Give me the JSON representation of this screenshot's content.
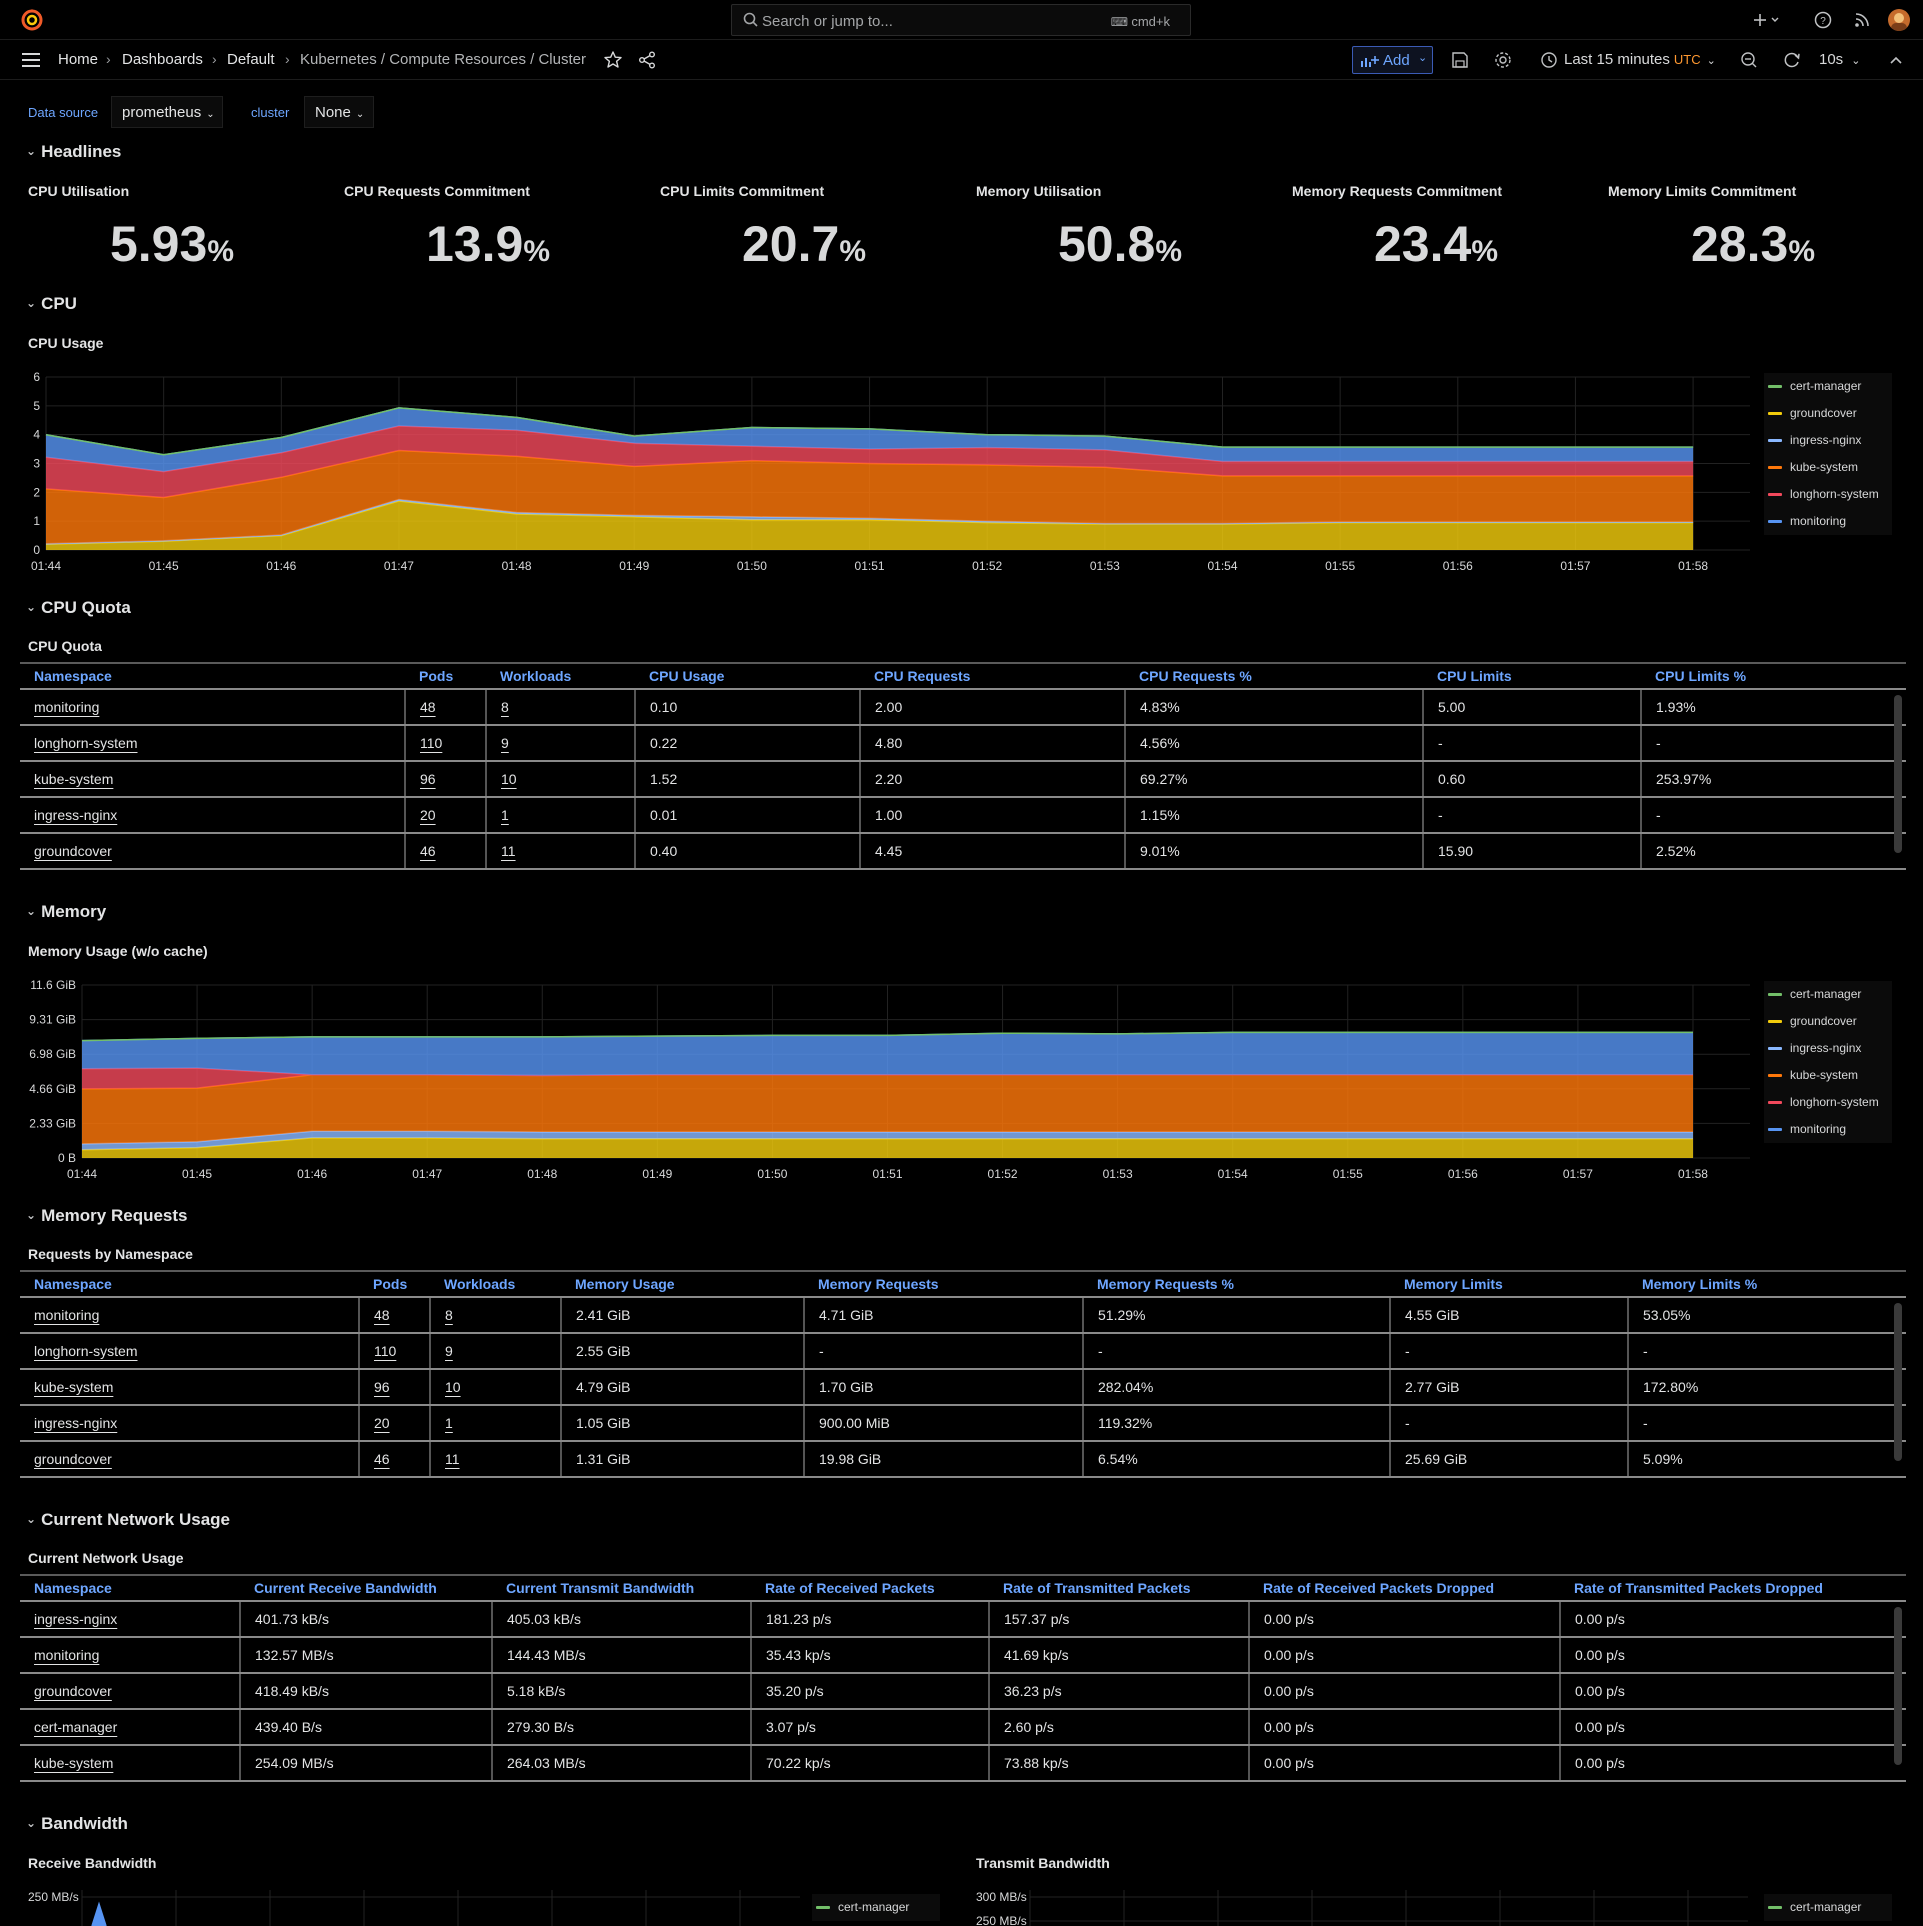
{
  "topbar": {
    "search_placeholder": "Search or jump to...",
    "search_shortcut": "cmd+k",
    "icons": [
      "grafana-logo-icon",
      "plus-icon",
      "help-icon",
      "news-icon",
      "avatar"
    ]
  },
  "navbar": {
    "breadcrumbs": [
      "Home",
      "Dashboards",
      "Default",
      "Kubernetes / Compute Resources / Cluster"
    ],
    "add_label": "Add",
    "time_range": "Last 15 minutes",
    "timezone": "UTC",
    "refresh_interval": "10s"
  },
  "variables": {
    "datasource_label": "Data source",
    "datasource_value": "prometheus",
    "cluster_label": "cluster",
    "cluster_value": "None"
  },
  "rows": {
    "headlines": "Headlines",
    "cpu": "CPU",
    "cpu_quota": "CPU Quota",
    "memory": "Memory",
    "memory_requests": "Memory Requests",
    "network": "Current Network Usage",
    "bandwidth": "Bandwidth"
  },
  "stats": [
    {
      "title": "CPU Utilisation",
      "value": "5.93",
      "unit": "%"
    },
    {
      "title": "CPU Requests Commitment",
      "value": "13.9",
      "unit": "%"
    },
    {
      "title": "CPU Limits Commitment",
      "value": "20.7",
      "unit": "%"
    },
    {
      "title": "Memory Utilisation",
      "value": "50.8",
      "unit": "%"
    },
    {
      "title": "Memory Requests Commitment",
      "value": "23.4",
      "unit": "%"
    },
    {
      "title": "Memory Limits Commitment",
      "value": "28.3",
      "unit": "%"
    }
  ],
  "colors": {
    "cert-manager": "#73bf69",
    "groundcover": "#f2cc0c",
    "ingress-nginx": "#8ab8ff",
    "kube-system": "#ff780a",
    "longhorn-system": "#f2495c",
    "monitoring": "#5794f2",
    "accent": "#6ea6ff",
    "time_accent": "#ff9830"
  },
  "legend": [
    "cert-manager",
    "groundcover",
    "ingress-nginx",
    "kube-system",
    "longhorn-system",
    "monitoring"
  ],
  "cpu_panel": {
    "title": "CPU Usage"
  },
  "memory_panel": {
    "title": "Memory Usage (w/o cache)"
  },
  "chart_data": [
    {
      "type": "area",
      "title": "CPU Usage",
      "stacked": true,
      "x": [
        "01:44",
        "01:45",
        "01:46",
        "01:47",
        "01:48",
        "01:49",
        "01:50",
        "01:51",
        "01:52",
        "01:53",
        "01:54",
        "01:55",
        "01:56",
        "01:57",
        "01:58"
      ],
      "yticks": [
        "0",
        "1",
        "2",
        "3",
        "4",
        "5",
        "6"
      ],
      "ylim": [
        0,
        6
      ],
      "series": [
        {
          "name": "groundcover",
          "values": [
            0.2,
            0.3,
            0.5,
            1.7,
            1.25,
            1.15,
            1.05,
            1.05,
            0.95,
            0.9,
            0.9,
            0.95,
            0.95,
            0.95,
            0.95
          ]
        },
        {
          "name": "ingress-nginx",
          "values": [
            0.02,
            0.02,
            0.02,
            0.05,
            0.05,
            0.05,
            0.1,
            0.05,
            0.05,
            0.02,
            0.02,
            0.02,
            0.02,
            0.02,
            0.02
          ]
        },
        {
          "name": "kube-system",
          "values": [
            1.9,
            1.5,
            2.0,
            1.7,
            1.95,
            1.7,
            1.95,
            1.9,
            1.95,
            1.95,
            1.65,
            1.6,
            1.6,
            1.6,
            1.6
          ]
        },
        {
          "name": "longhorn-system",
          "values": [
            1.1,
            0.9,
            0.85,
            0.85,
            0.9,
            0.8,
            0.5,
            0.5,
            0.6,
            0.6,
            0.5,
            0.5,
            0.5,
            0.5,
            0.5
          ]
        },
        {
          "name": "monitoring",
          "values": [
            0.78,
            0.58,
            0.53,
            0.63,
            0.45,
            0.25,
            0.65,
            0.7,
            0.45,
            0.48,
            0.5,
            0.5,
            0.5,
            0.5,
            0.5
          ]
        },
        {
          "name": "cert-manager",
          "values": [
            0,
            0,
            0,
            0,
            0,
            0,
            0,
            0,
            0,
            0,
            0,
            0,
            0,
            0,
            0
          ]
        }
      ]
    },
    {
      "type": "area",
      "title": "Memory Usage (w/o cache)",
      "stacked": true,
      "x": [
        "01:44",
        "01:45",
        "01:46",
        "01:47",
        "01:48",
        "01:49",
        "01:50",
        "01:51",
        "01:52",
        "01:53",
        "01:54",
        "01:55",
        "01:56",
        "01:57",
        "01:58"
      ],
      "yticks": [
        "0 B",
        "2.33 GiB",
        "4.66 GiB",
        "6.98 GiB",
        "9.31 GiB",
        "11.6 GiB"
      ],
      "ylim": [
        0,
        11.64
      ],
      "series": [
        {
          "name": "groundcover",
          "values": [
            0.55,
            0.7,
            1.35,
            1.35,
            1.3,
            1.3,
            1.3,
            1.3,
            1.3,
            1.3,
            1.3,
            1.3,
            1.3,
            1.3,
            1.3
          ]
        },
        {
          "name": "ingress-nginx",
          "values": [
            0.4,
            0.4,
            0.45,
            0.45,
            0.45,
            0.45,
            0.45,
            0.45,
            0.45,
            0.45,
            0.45,
            0.45,
            0.45,
            0.45,
            0.45
          ]
        },
        {
          "name": "kube-system",
          "values": [
            3.7,
            3.6,
            3.8,
            3.8,
            3.8,
            3.85,
            3.85,
            3.85,
            3.85,
            3.85,
            3.85,
            3.85,
            3.85,
            3.85,
            3.85
          ]
        },
        {
          "name": "longhorn-system",
          "values": [
            1.35,
            1.35,
            0.0,
            0.0,
            0.0,
            0.0,
            0.0,
            0.0,
            0.0,
            0.0,
            0.0,
            0.0,
            0.0,
            0.0,
            0.0
          ]
        },
        {
          "name": "monitoring",
          "values": [
            1.9,
            2.0,
            2.55,
            2.55,
            2.6,
            2.6,
            2.65,
            2.65,
            2.8,
            2.75,
            2.85,
            2.85,
            2.85,
            2.85,
            2.85
          ]
        },
        {
          "name": "cert-manager",
          "values": [
            0,
            0,
            0,
            0,
            0,
            0,
            0,
            0,
            0,
            0,
            0,
            0,
            0,
            0,
            0
          ]
        }
      ]
    },
    {
      "type": "area",
      "title": "Receive Bandwidth",
      "yticks": [
        "250 MB/s"
      ],
      "legend": [
        "cert-manager"
      ]
    },
    {
      "type": "area",
      "title": "Transmit Bandwidth",
      "yticks": [
        "300 MB/s",
        "250 MB/s"
      ],
      "legend": [
        "cert-manager"
      ]
    }
  ],
  "cpu_quota": {
    "title": "CPU Quota",
    "columns": [
      "Namespace",
      "Pods",
      "Workloads",
      "CPU Usage",
      "CPU Requests",
      "CPU Requests %",
      "CPU Limits",
      "CPU Limits %"
    ],
    "rows": [
      [
        "monitoring",
        "48",
        "8",
        "0.10",
        "2.00",
        "4.83%",
        "5.00",
        "1.93%"
      ],
      [
        "longhorn-system",
        "110",
        "9",
        "0.22",
        "4.80",
        "4.56%",
        "-",
        "-"
      ],
      [
        "kube-system",
        "96",
        "10",
        "1.52",
        "2.20",
        "69.27%",
        "0.60",
        "253.97%"
      ],
      [
        "ingress-nginx",
        "20",
        "1",
        "0.01",
        "1.00",
        "1.15%",
        "-",
        "-"
      ],
      [
        "groundcover",
        "46",
        "11",
        "0.40",
        "4.45",
        "9.01%",
        "15.90",
        "2.52%"
      ]
    ]
  },
  "memory_requests": {
    "title": "Requests by Namespace",
    "columns": [
      "Namespace",
      "Pods",
      "Workloads",
      "Memory Usage",
      "Memory Requests",
      "Memory Requests %",
      "Memory Limits",
      "Memory Limits %"
    ],
    "rows": [
      [
        "monitoring",
        "48",
        "8",
        "2.41 GiB",
        "4.71 GiB",
        "51.29%",
        "4.55 GiB",
        "53.05%"
      ],
      [
        "longhorn-system",
        "110",
        "9",
        "2.55 GiB",
        "-",
        "-",
        "-",
        "-"
      ],
      [
        "kube-system",
        "96",
        "10",
        "4.79 GiB",
        "1.70 GiB",
        "282.04%",
        "2.77 GiB",
        "172.80%"
      ],
      [
        "ingress-nginx",
        "20",
        "1",
        "1.05 GiB",
        "900.00 MiB",
        "119.32%",
        "-",
        "-"
      ],
      [
        "groundcover",
        "46",
        "11",
        "1.31 GiB",
        "19.98 GiB",
        "6.54%",
        "25.69 GiB",
        "5.09%"
      ]
    ]
  },
  "network": {
    "title": "Current Network Usage",
    "columns": [
      "Namespace",
      "Current Receive Bandwidth",
      "Current Transmit Bandwidth",
      "Rate of Received Packets",
      "Rate of Transmitted Packets",
      "Rate of Received Packets Dropped",
      "Rate of Transmitted Packets Dropped"
    ],
    "rows": [
      [
        "ingress-nginx",
        "401.73 kB/s",
        "405.03 kB/s",
        "181.23 p/s",
        "157.37 p/s",
        "0.00 p/s",
        "0.00 p/s"
      ],
      [
        "monitoring",
        "132.57 MB/s",
        "144.43 MB/s",
        "35.43 kp/s",
        "41.69 kp/s",
        "0.00 p/s",
        "0.00 p/s"
      ],
      [
        "groundcover",
        "418.49 kB/s",
        "5.18 kB/s",
        "35.20 p/s",
        "36.23 p/s",
        "0.00 p/s",
        "0.00 p/s"
      ],
      [
        "cert-manager",
        "439.40 B/s",
        "279.30 B/s",
        "3.07 p/s",
        "2.60 p/s",
        "0.00 p/s",
        "0.00 p/s"
      ],
      [
        "kube-system",
        "254.09 MB/s",
        "264.03 MB/s",
        "70.22 kp/s",
        "73.88 kp/s",
        "0.00 p/s",
        "0.00 p/s"
      ]
    ]
  },
  "bandwidth": {
    "receive_title": "Receive Bandwidth",
    "transmit_title": "Transmit Bandwidth"
  }
}
